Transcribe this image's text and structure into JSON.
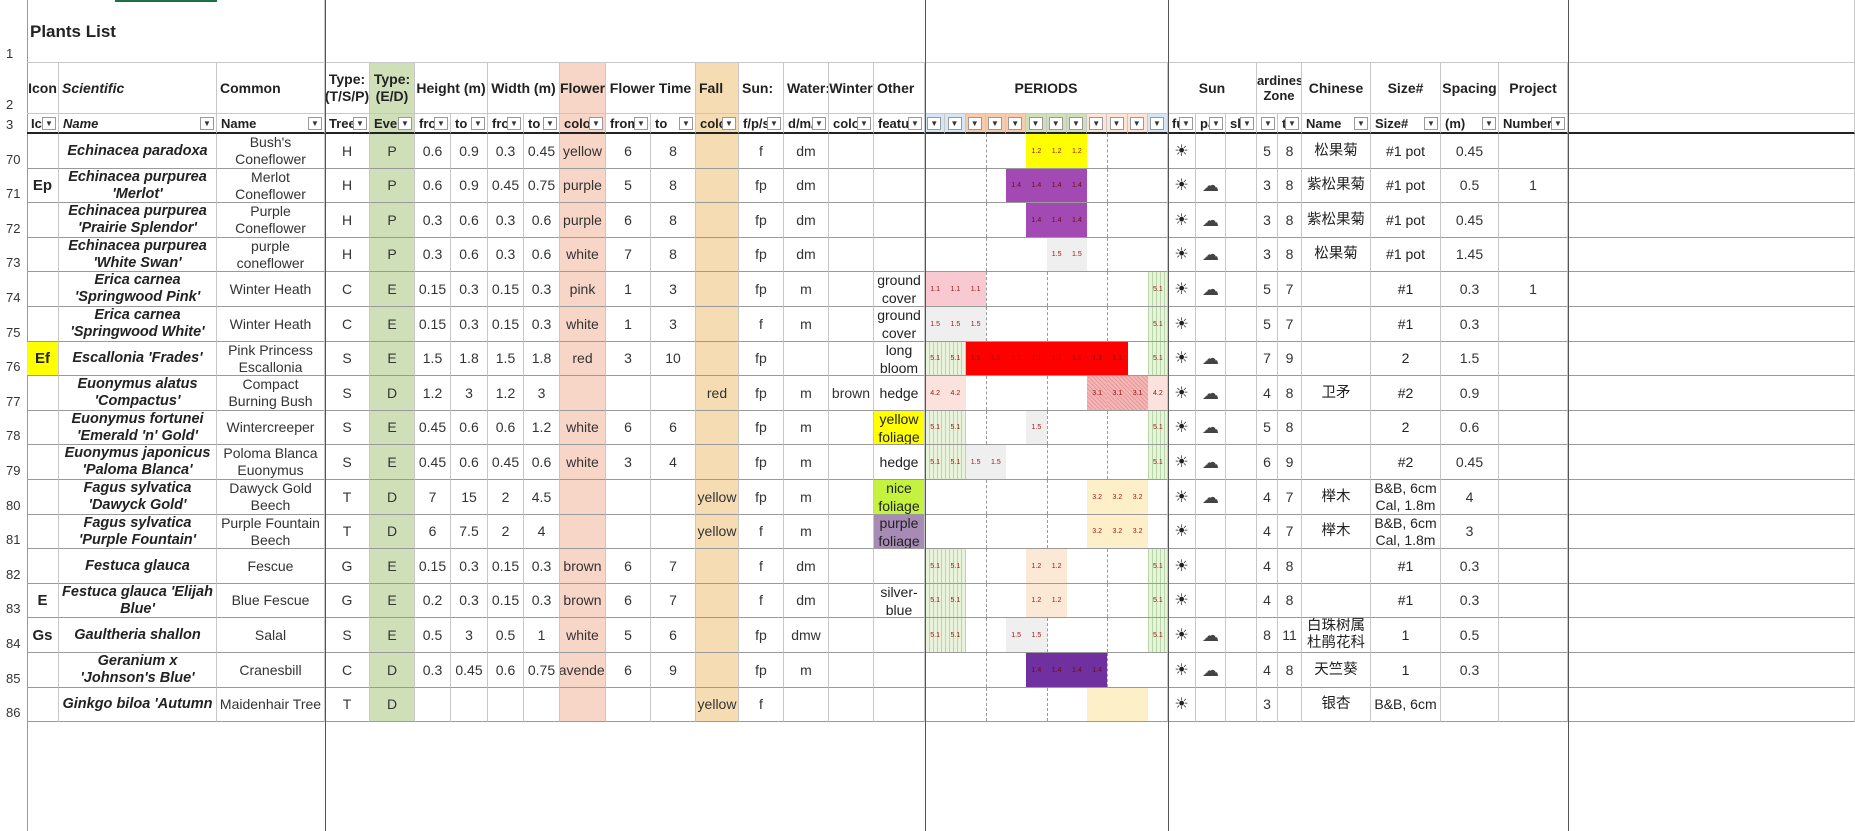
{
  "sheet": {
    "title": "Plants List",
    "header_row2": {
      "icon": "Icon",
      "scientific": "Scientific",
      "common": "Common",
      "type": "Type: (T/S/P)",
      "evergreen": "Type: (E/D)",
      "height": "Height (m)",
      "width": "Width (m)",
      "flower": "Flower",
      "flower_time": "Flower Time",
      "fall": "Fall",
      "sun": "Sun:",
      "water": "Water:",
      "winter": "Winter",
      "other": "Other",
      "periods": "PERIODS",
      "sun2": "Sun",
      "hardiness": "Hardiness Zone",
      "chinese": "Chinese",
      "size": "Size#",
      "spacing": "Spacing",
      "project": "Project"
    },
    "header_row3": {
      "icon": "Ico",
      "scientific": "Name",
      "common": "Name",
      "type": "Tree",
      "evergreen": "Ever",
      "h_from": "fro",
      "h_to": "to",
      "w_from": "fro",
      "w_to": "to",
      "flower": "color",
      "ft_from": "from",
      "ft_to": "to",
      "fall": "colo",
      "sun": "f/p/s",
      "water": "d/m/v",
      "winter": "color",
      "other": "featu",
      "sun_full": "fu",
      "sun_part": "pa",
      "sun_shade": "sh",
      "hz_from": "f",
      "hz_to": "t",
      "chinese": "Name",
      "size": "Size#",
      "spacing": "(m)",
      "project": "Number"
    },
    "colors": {
      "evergreen_col": "#cfe0b9",
      "flower_col": "#f7d6c8",
      "fall_col": "#f5dcb3",
      "period_yellow": "#ffff00",
      "period_purple": "#a349b4",
      "period_pink": "#f9c9d2",
      "period_red": "#ff0000",
      "period_lightgray": "#efefef",
      "period_cream": "#fdf0c8",
      "period_dark_purple": "#7030a0",
      "period_lightpink": "#fbe2dd"
    },
    "rows": [
      {
        "rn": "70",
        "icon": "",
        "sci": "Echinacea paradoxa",
        "com": "Bush's Coneflower",
        "type": "H",
        "ed": "P",
        "hf": "0.6",
        "ht": "0.9",
        "wf": "0.3",
        "wt": "0.45",
        "fc": "yellow",
        "ftf": "6",
        "ftt": "8",
        "fall": "",
        "sun": "f",
        "water": "dm",
        "winter": "",
        "other": "",
        "full": "☀",
        "part": "",
        "hzf": "5",
        "hzt": "8",
        "cn": "松果菊",
        "size": "#1 pot",
        "spacing": "0.45",
        "proj": "",
        "periods": [
          {
            "m": 5,
            "len": 3,
            "c": "#ffff00",
            "t": "1.2"
          }
        ]
      },
      {
        "rn": "71",
        "icon": "Ep",
        "sci": "Echinacea purpurea 'Merlot'",
        "com": "Merlot Coneflower",
        "type": "H",
        "ed": "P",
        "hf": "0.6",
        "ht": "0.9",
        "wf": "0.45",
        "wt": "0.75",
        "fc": "purple",
        "ftf": "5",
        "ftt": "8",
        "fall": "",
        "sun": "fp",
        "water": "dm",
        "winter": "",
        "other": "",
        "full": "☀",
        "part": "☁",
        "hzf": "3",
        "hzt": "8",
        "cn": "紫松果菊",
        "size": "#1 pot",
        "spacing": "0.5",
        "proj": "1",
        "periods": [
          {
            "m": 4,
            "len": 4,
            "c": "#a349b4",
            "t": "1.4"
          }
        ]
      },
      {
        "rn": "72",
        "icon": "",
        "sci": "Echinacea purpurea 'Prairie Splendor'",
        "com": "Purple Coneflower",
        "type": "H",
        "ed": "P",
        "hf": "0.3",
        "ht": "0.6",
        "wf": "0.3",
        "wt": "0.6",
        "fc": "purple",
        "ftf": "6",
        "ftt": "8",
        "fall": "",
        "sun": "fp",
        "water": "dm",
        "winter": "",
        "other": "",
        "full": "☀",
        "part": "☁",
        "hzf": "3",
        "hzt": "8",
        "cn": "紫松果菊",
        "size": "#1 pot",
        "spacing": "0.45",
        "proj": "",
        "periods": [
          {
            "m": 5,
            "len": 3,
            "c": "#a349b4",
            "t": "1.4"
          }
        ]
      },
      {
        "rn": "73",
        "icon": "",
        "sci": "Echinacea purpurea 'White Swan'",
        "com": "purple coneflower",
        "type": "H",
        "ed": "P",
        "hf": "0.3",
        "ht": "0.6",
        "wf": "0.3",
        "wt": "0.6",
        "fc": "white",
        "ftf": "7",
        "ftt": "8",
        "fall": "",
        "sun": "fp",
        "water": "dm",
        "winter": "",
        "other": "",
        "full": "☀",
        "part": "☁",
        "hzf": "3",
        "hzt": "8",
        "cn": "松果菊",
        "size": "#1 pot",
        "spacing": "1.45",
        "proj": "",
        "periods": [
          {
            "m": 6,
            "len": 2,
            "c": "#efefef",
            "t": "1.5"
          }
        ]
      },
      {
        "rn": "74",
        "icon": "",
        "sci": "Erica carnea 'Springwood Pink'",
        "com": "Winter Heath",
        "type": "C",
        "ed": "E",
        "hf": "0.15",
        "ht": "0.3",
        "wf": "0.15",
        "wt": "0.3",
        "fc": "pink",
        "ftf": "1",
        "ftt": "3",
        "fall": "",
        "sun": "fp",
        "water": "m",
        "winter": "",
        "other": "ground cover",
        "full": "☀",
        "part": "☁",
        "hzf": "5",
        "hzt": "7",
        "cn": "",
        "size": "#1",
        "spacing": "0.3",
        "proj": "1",
        "periods": [
          {
            "m": 0,
            "len": 3,
            "c": "#f9c9d2",
            "t": "1.1"
          },
          {
            "m": 11,
            "len": 1,
            "c": "#e9f3dc",
            "t": "5.1",
            "g": 1
          }
        ]
      },
      {
        "rn": "75",
        "icon": "",
        "sci": "Erica carnea 'Springwood White'",
        "com": "Winter Heath",
        "type": "C",
        "ed": "E",
        "hf": "0.15",
        "ht": "0.3",
        "wf": "0.15",
        "wt": "0.3",
        "fc": "white",
        "ftf": "1",
        "ftt": "3",
        "fall": "",
        "sun": "f",
        "water": "m",
        "winter": "",
        "other": "ground cover",
        "full": "☀",
        "part": "",
        "hzf": "5",
        "hzt": "7",
        "cn": "",
        "size": "#1",
        "spacing": "0.3",
        "proj": "",
        "periods": [
          {
            "m": 0,
            "len": 3,
            "c": "#efefef",
            "t": "1.5"
          },
          {
            "m": 11,
            "len": 1,
            "c": "#e9f3dc",
            "t": "5.1",
            "g": 1
          }
        ]
      },
      {
        "rn": "76",
        "icon": "Ef",
        "sci": "Escallonia 'Frades'",
        "com": "Pink Princess Escallonia",
        "type": "S",
        "ed": "E",
        "hf": "1.5",
        "ht": "1.8",
        "wf": "1.5",
        "wt": "1.8",
        "fc": "red",
        "ftf": "3",
        "ftt": "10",
        "fall": "",
        "sun": "fp",
        "water": "",
        "winter": "",
        "other": "long bloom",
        "full": "☀",
        "part": "☁",
        "hzf": "7",
        "hzt": "9",
        "cn": "",
        "size": "2",
        "spacing": "1.5",
        "proj": "",
        "periods": [
          {
            "m": 0,
            "len": 2,
            "c": "#e9f3dc",
            "t": "5.1",
            "g": 1
          },
          {
            "m": 2,
            "len": 8,
            "c": "#ff0000",
            "t": "1.1"
          },
          {
            "m": 11,
            "len": 1,
            "c": "#e9f3dc",
            "t": "5.1",
            "g": 1
          }
        ]
      },
      {
        "rn": "77",
        "icon": "",
        "sci": "Euonymus alatus 'Compactus'",
        "com": "Compact Burning Bush",
        "type": "S",
        "ed": "D",
        "hf": "1.2",
        "ht": "3",
        "wf": "1.2",
        "wt": "3",
        "fc": "",
        "ftf": "",
        "ftt": "",
        "fall": "red",
        "sun": "fp",
        "water": "m",
        "winter": "brown",
        "other": "hedge",
        "full": "☀",
        "part": "☁",
        "hzf": "4",
        "hzt": "8",
        "cn": "卫矛",
        "size": "#2",
        "spacing": "0.9",
        "proj": "",
        "periods": [
          {
            "m": 0,
            "len": 2,
            "c": "#fbe2dd",
            "t": "4.2"
          },
          {
            "m": 8,
            "len": 3,
            "c": "#f4b6b6",
            "t": "3.1"
          },
          {
            "m": 11,
            "len": 1,
            "c": "#fbe2dd",
            "t": "4.2"
          }
        ]
      },
      {
        "rn": "78",
        "icon": "",
        "sci": "Euonymus fortunei 'Emerald 'n' Gold'",
        "com": "Wintercreeper",
        "type": "S",
        "ed": "E",
        "hf": "0.45",
        "ht": "0.6",
        "wf": "0.6",
        "wt": "1.2",
        "fc": "white",
        "ftf": "6",
        "ftt": "6",
        "fall": "",
        "sun": "fp",
        "water": "m",
        "winter": "",
        "other": "yellow foliage",
        "oc": "#ffff00",
        "full": "☀",
        "part": "☁",
        "hzf": "5",
        "hzt": "8",
        "cn": "",
        "size": "2",
        "spacing": "0.6",
        "proj": "",
        "periods": [
          {
            "m": 0,
            "len": 2,
            "c": "#e9f3dc",
            "t": "5.1",
            "g": 1
          },
          {
            "m": 5,
            "len": 1,
            "c": "#efefef",
            "t": "1.5"
          },
          {
            "m": 11,
            "len": 1,
            "c": "#e9f3dc",
            "t": "5.1",
            "g": 1
          }
        ]
      },
      {
        "rn": "79",
        "icon": "",
        "sci": "Euonymus japonicus 'Paloma Blanca'",
        "com": "Poloma Blanca Euonymus",
        "type": "S",
        "ed": "E",
        "hf": "0.45",
        "ht": "0.6",
        "wf": "0.45",
        "wt": "0.6",
        "fc": "white",
        "ftf": "3",
        "ftt": "4",
        "fall": "",
        "sun": "fp",
        "water": "m",
        "winter": "",
        "other": "hedge",
        "full": "☀",
        "part": "☁",
        "hzf": "6",
        "hzt": "9",
        "cn": "",
        "size": "#2",
        "spacing": "0.45",
        "proj": "",
        "periods": [
          {
            "m": 0,
            "len": 2,
            "c": "#e9f3dc",
            "t": "5.1",
            "g": 1
          },
          {
            "m": 2,
            "len": 2,
            "c": "#efefef",
            "t": "1.5"
          },
          {
            "m": 11,
            "len": 1,
            "c": "#e9f3dc",
            "t": "5.1",
            "g": 1
          }
        ]
      },
      {
        "rn": "80",
        "icon": "",
        "sci": "Fagus sylvatica 'Dawyck Gold'",
        "com": "Dawyck Gold Beech",
        "type": "T",
        "ed": "D",
        "hf": "7",
        "ht": "15",
        "wf": "2",
        "wt": "4.5",
        "fc": "",
        "ftf": "",
        "ftt": "",
        "fall": "yellow",
        "sun": "fp",
        "water": "m",
        "winter": "",
        "other": "nice foliage",
        "oc": "#c4f23e",
        "full": "☀",
        "part": "☁",
        "hzf": "4",
        "hzt": "7",
        "cn": "榉木",
        "size": "B&B, 6cm Cal, 1.8m",
        "spacing": "4",
        "proj": "",
        "periods": [
          {
            "m": 8,
            "len": 3,
            "c": "#fdf0c8",
            "t": "3.2"
          }
        ]
      },
      {
        "rn": "81",
        "icon": "",
        "sci": "Fagus sylvatica 'Purple Fountain'",
        "com": "Purple Fountain Beech",
        "type": "T",
        "ed": "D",
        "hf": "6",
        "ht": "7.5",
        "wf": "2",
        "wt": "4",
        "fc": "",
        "ftf": "",
        "ftt": "",
        "fall": "yellow",
        "sun": "f",
        "water": "m",
        "winter": "",
        "other": "purple foliage",
        "oc": "#a78bb5",
        "full": "☀",
        "part": "",
        "hzf": "4",
        "hzt": "7",
        "cn": "榉木",
        "size": "B&B, 6cm Cal, 1.8m",
        "spacing": "3",
        "proj": "",
        "periods": [
          {
            "m": 8,
            "len": 3,
            "c": "#fdf0c8",
            "t": "3.2"
          }
        ]
      },
      {
        "rn": "82",
        "icon": "",
        "sci": "Festuca glauca",
        "com": "Fescue",
        "type": "G",
        "ed": "E",
        "hf": "0.15",
        "ht": "0.3",
        "wf": "0.15",
        "wt": "0.3",
        "fc": "brown",
        "ftf": "6",
        "ftt": "7",
        "fall": "",
        "sun": "f",
        "water": "dm",
        "winter": "",
        "other": "",
        "full": "☀",
        "part": "",
        "hzf": "4",
        "hzt": "8",
        "cn": "",
        "size": "#1",
        "spacing": "0.3",
        "proj": "",
        "periods": [
          {
            "m": 0,
            "len": 2,
            "c": "#e9f3dc",
            "t": "5.1",
            "g": 1
          },
          {
            "m": 5,
            "len": 2,
            "c": "#fbe9d6",
            "t": "1.2"
          },
          {
            "m": 11,
            "len": 1,
            "c": "#e9f3dc",
            "t": "5.1",
            "g": 1
          }
        ]
      },
      {
        "rn": "83",
        "icon": "E",
        "sci": "Festuca glauca 'Elijah Blue'",
        "com": "Blue Fescue",
        "type": "G",
        "ed": "E",
        "hf": "0.2",
        "ht": "0.3",
        "wf": "0.15",
        "wt": "0.3",
        "fc": "brown",
        "ftf": "6",
        "ftt": "7",
        "fall": "",
        "sun": "f",
        "water": "dm",
        "winter": "",
        "other": "silver-blue",
        "full": "☀",
        "part": "",
        "hzf": "4",
        "hzt": "8",
        "cn": "",
        "size": "#1",
        "spacing": "0.3",
        "proj": "",
        "periods": [
          {
            "m": 0,
            "len": 2,
            "c": "#e9f3dc",
            "t": "5.1",
            "g": 1
          },
          {
            "m": 5,
            "len": 2,
            "c": "#fbe9d6",
            "t": "1.2"
          },
          {
            "m": 11,
            "len": 1,
            "c": "#e9f3dc",
            "t": "5.1",
            "g": 1
          }
        ]
      },
      {
        "rn": "84",
        "icon": "Gs",
        "sci": "Gaultheria shallon",
        "com": "Salal",
        "type": "S",
        "ed": "E",
        "hf": "0.5",
        "ht": "3",
        "wf": "0.5",
        "wt": "1",
        "fc": "white",
        "ftf": "5",
        "ftt": "6",
        "fall": "",
        "sun": "fp",
        "water": "dmw",
        "winter": "",
        "other": "",
        "full": "☀",
        "part": "☁",
        "hzf": "8",
        "hzt": "11",
        "cn": "白珠树属 杜鹃花科",
        "size": "1",
        "spacing": "0.5",
        "proj": "",
        "periods": [
          {
            "m": 0,
            "len": 2,
            "c": "#e9f3dc",
            "t": "5.1",
            "g": 1
          },
          {
            "m": 4,
            "len": 2,
            "c": "#efefef",
            "t": "1.5"
          },
          {
            "m": 11,
            "len": 1,
            "c": "#e9f3dc",
            "t": "5.1",
            "g": 1
          }
        ]
      },
      {
        "rn": "85",
        "icon": "",
        "sci": "Geranium x 'Johnson's Blue'",
        "com": "Cranesbill",
        "type": "C",
        "ed": "D",
        "hf": "0.3",
        "ht": "0.45",
        "wf": "0.6",
        "wt": "0.75",
        "fc": "lavender",
        "ftf": "6",
        "ftt": "9",
        "fall": "",
        "sun": "fp",
        "water": "m",
        "winter": "",
        "other": "",
        "full": "☀",
        "part": "☁",
        "hzf": "4",
        "hzt": "8",
        "cn": "天竺葵",
        "size": "1",
        "spacing": "0.3",
        "proj": "",
        "periods": [
          {
            "m": 5,
            "len": 4,
            "c": "#7030a0",
            "t": "1.4"
          }
        ]
      },
      {
        "rn": "86",
        "icon": "",
        "sci": "Ginkgo biloa 'Autumn",
        "com": "Maidenhair Tree",
        "type": "T",
        "ed": "D",
        "hf": "",
        "ht": "",
        "wf": "",
        "wt": "",
        "fc": "",
        "ftf": "",
        "ftt": "",
        "fall": "yellow",
        "sun": "f",
        "water": "",
        "winter": "",
        "other": "",
        "full": "☀",
        "part": "",
        "hzf": "3",
        "hzt": "",
        "cn": "银杏",
        "size": "B&B, 6cm",
        "spacing": "",
        "proj": "",
        "periods": [
          {
            "m": 8,
            "len": 3,
            "c": "#fdf0c8",
            "t": ""
          }
        ]
      }
    ]
  }
}
